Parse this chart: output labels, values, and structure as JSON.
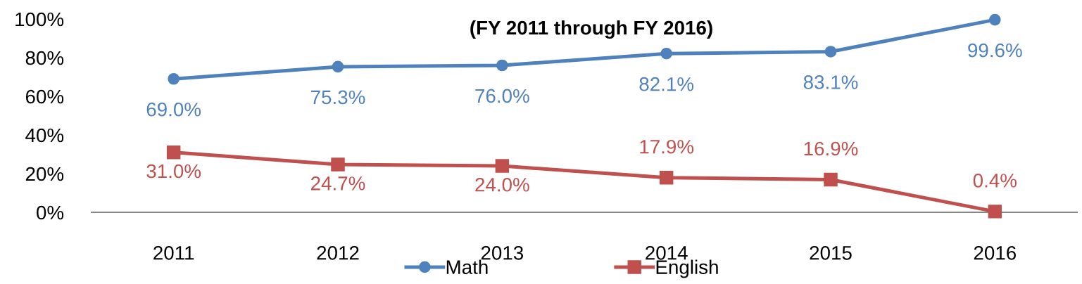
{
  "chart_data": {
    "type": "line",
    "title": "(FY 2011 through FY 2016)",
    "categories": [
      "2011",
      "2012",
      "2013",
      "2014",
      "2015",
      "2016"
    ],
    "series": [
      {
        "name": "Math",
        "color": "#4f81bd",
        "marker": "circle",
        "values": [
          69.0,
          75.3,
          76.0,
          82.1,
          83.1,
          99.6
        ],
        "value_labels": [
          "69.0%",
          "75.3%",
          "76.0%",
          "82.1%",
          "83.1%",
          "99.6%"
        ]
      },
      {
        "name": "English",
        "color": "#c0504d",
        "marker": "square",
        "values": [
          31.0,
          24.7,
          24.0,
          17.9,
          16.9,
          0.4
        ],
        "value_labels": [
          "31.0%",
          "24.7%",
          "24.0%",
          "17.9%",
          "16.9%",
          "0.4%"
        ]
      }
    ],
    "ylim": [
      0,
      100
    ],
    "yticks": [
      {
        "value": 0,
        "label": "0%"
      },
      {
        "value": 20,
        "label": "20%"
      },
      {
        "value": 40,
        "label": "40%"
      },
      {
        "value": 60,
        "label": "60%"
      },
      {
        "value": 80,
        "label": "80%"
      },
      {
        "value": 100,
        "label": "100%"
      }
    ],
    "legend": "bottom",
    "line_style": "solid"
  }
}
